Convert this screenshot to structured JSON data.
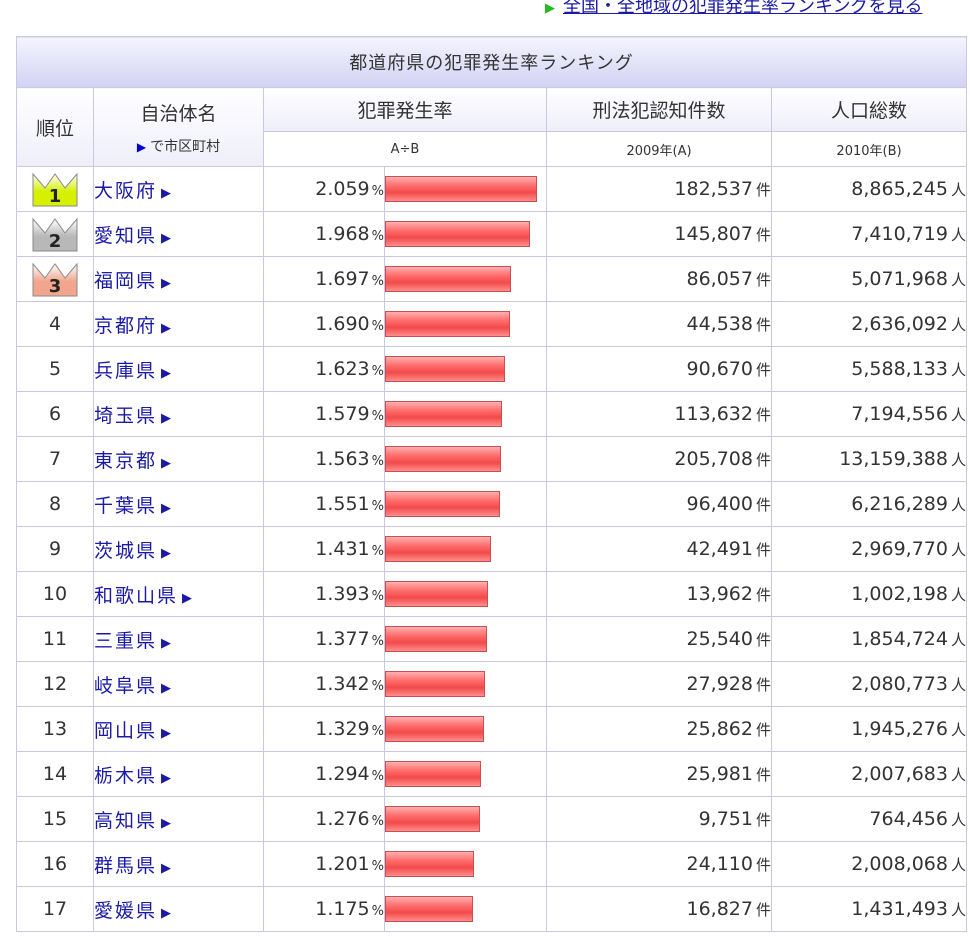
{
  "top_link": {
    "text": "全国・全地域の犯罪発生率ランキングを見る"
  },
  "table": {
    "title": "都道府県の犯罪発生率ランキング",
    "headers": {
      "rank": "順位",
      "municipality": "自治体名",
      "municipality_sub": "で市区町村",
      "rate": "犯罪発生率",
      "rate_sub": "A÷B",
      "cases": "刑法犯認知件数",
      "cases_sub": "2009年(A)",
      "population": "人口総数",
      "population_sub": "2010年(B)"
    },
    "units": {
      "rate": "%",
      "cases": "件",
      "population": "人"
    },
    "rows": [
      {
        "rank": "1",
        "name": "大阪府",
        "rate": "2.059",
        "cases": "182,537",
        "population": "8,865,245"
      },
      {
        "rank": "2",
        "name": "愛知県",
        "rate": "1.968",
        "cases": "145,807",
        "population": "7,410,719"
      },
      {
        "rank": "3",
        "name": "福岡県",
        "rate": "1.697",
        "cases": "86,057",
        "population": "5,071,968"
      },
      {
        "rank": "4",
        "name": "京都府",
        "rate": "1.690",
        "cases": "44,538",
        "population": "2,636,092"
      },
      {
        "rank": "5",
        "name": "兵庫県",
        "rate": "1.623",
        "cases": "90,670",
        "population": "5,588,133"
      },
      {
        "rank": "6",
        "name": "埼玉県",
        "rate": "1.579",
        "cases": "113,632",
        "population": "7,194,556"
      },
      {
        "rank": "7",
        "name": "東京都",
        "rate": "1.563",
        "cases": "205,708",
        "population": "13,159,388"
      },
      {
        "rank": "8",
        "name": "千葉県",
        "rate": "1.551",
        "cases": "96,400",
        "population": "6,216,289"
      },
      {
        "rank": "9",
        "name": "茨城県",
        "rate": "1.431",
        "cases": "42,491",
        "population": "2,969,770"
      },
      {
        "rank": "10",
        "name": "和歌山県",
        "rate": "1.393",
        "cases": "13,962",
        "population": "1,002,198"
      },
      {
        "rank": "11",
        "name": "三重県",
        "rate": "1.377",
        "cases": "25,540",
        "population": "1,854,724"
      },
      {
        "rank": "12",
        "name": "岐阜県",
        "rate": "1.342",
        "cases": "27,928",
        "population": "2,080,773"
      },
      {
        "rank": "13",
        "name": "岡山県",
        "rate": "1.329",
        "cases": "25,862",
        "population": "1,945,276"
      },
      {
        "rank": "14",
        "name": "栃木県",
        "rate": "1.294",
        "cases": "25,981",
        "population": "2,007,683"
      },
      {
        "rank": "15",
        "name": "高知県",
        "rate": "1.276",
        "cases": "9,751",
        "population": "764,456"
      },
      {
        "rank": "16",
        "name": "群馬県",
        "rate": "1.201",
        "cases": "24,110",
        "population": "2,008,068"
      },
      {
        "rank": "17",
        "name": "愛媛県",
        "rate": "1.175",
        "cases": "16,827",
        "population": "1,431,493"
      }
    ]
  },
  "colors": {
    "link": "#1a1aa6",
    "bar": "#f24a4a",
    "crown_gold": "#d6f000",
    "crown_silver": "#b8b8b8",
    "crown_bronze": "#f0a58c",
    "header_bg": "#d2d2f3",
    "border": "#c8c8e4"
  }
}
